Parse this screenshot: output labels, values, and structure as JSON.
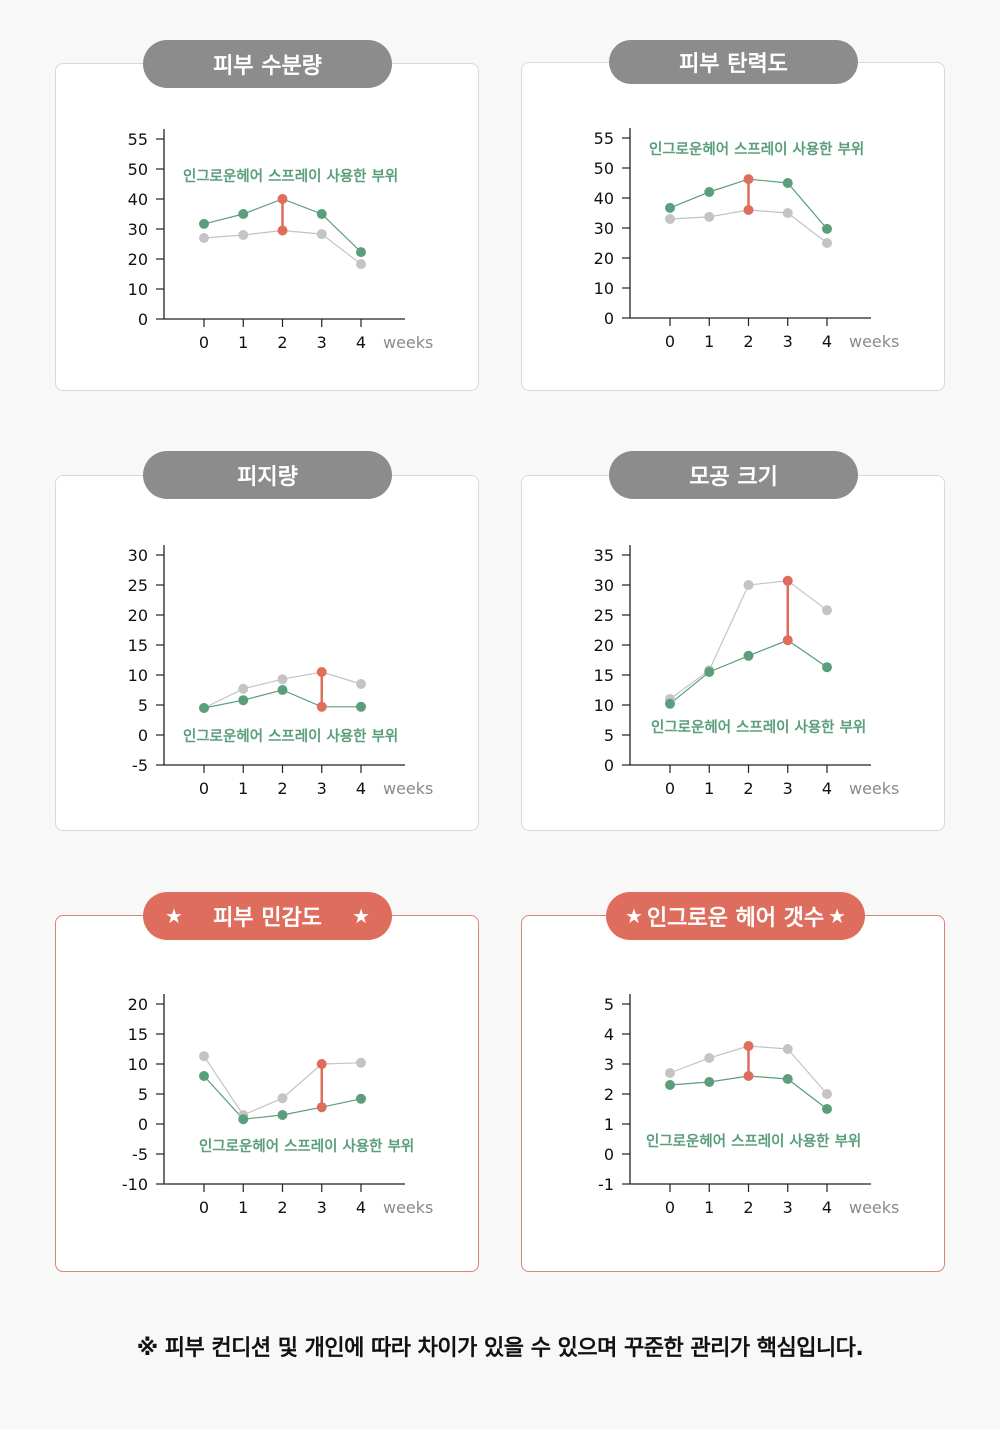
{
  "colors": {
    "treated": "#5a9e7c",
    "untreated": "#c4c4c4",
    "highlight": "#df6d5d",
    "title_pill": "#8c8c8c"
  },
  "footer": "※ 피부 컨디션 및 개인에 따라 차이가 있을 수 있으며 꾸준한 관리가 핵심입니다.",
  "chart_data": [
    {
      "type": "line",
      "title": "피부 수분량",
      "starred": false,
      "xlabel": "weeks",
      "x": [
        0,
        1,
        2,
        3,
        4
      ],
      "y_ticks": [
        55,
        50,
        40,
        30,
        20,
        10,
        0
      ],
      "annotation": "인그로운헤어 스프레이 사용한 부위",
      "series": [
        {
          "role": "treated",
          "values": [
            31.7,
            35,
            40,
            35,
            22.3
          ]
        },
        {
          "role": "untreated",
          "values": [
            27,
            28,
            29.5,
            28.3,
            18.3
          ]
        }
      ],
      "highlight_index": 2
    },
    {
      "type": "line",
      "title": "피부 탄력도",
      "starred": false,
      "xlabel": "weeks",
      "x": [
        0,
        1,
        2,
        3,
        4
      ],
      "y_ticks": [
        55,
        50,
        40,
        30,
        20,
        10,
        0
      ],
      "annotation": "인그로운헤어 스프레이 사용한 부위",
      "series": [
        {
          "role": "treated",
          "values": [
            36.7,
            42,
            46.3,
            45,
            29.7
          ]
        },
        {
          "role": "untreated",
          "values": [
            33,
            33.7,
            36,
            35,
            25
          ]
        }
      ],
      "highlight_index": 2
    },
    {
      "type": "line",
      "title": "피지량",
      "starred": false,
      "xlabel": "weeks",
      "x": [
        0,
        1,
        2,
        3,
        4
      ],
      "y_ticks": [
        30,
        25,
        20,
        15,
        10,
        5,
        0,
        -5
      ],
      "annotation": "인그로운헤어 스프레이 사용한 부위",
      "series": [
        {
          "role": "treated",
          "values": [
            4.5,
            5.8,
            7.5,
            4.7,
            4.7
          ]
        },
        {
          "role": "untreated",
          "values": [
            4.5,
            7.7,
            9.3,
            10.5,
            8.5
          ]
        }
      ],
      "highlight_index": 3
    },
    {
      "type": "line",
      "title": "모공 크기",
      "starred": false,
      "xlabel": "weeks",
      "x": [
        0,
        1,
        2,
        3,
        4
      ],
      "y_ticks": [
        35,
        30,
        25,
        20,
        15,
        10,
        5,
        0
      ],
      "annotation": "인그로운헤어 스프레이 사용한 부위",
      "series": [
        {
          "role": "treated",
          "values": [
            10.2,
            15.5,
            18.2,
            20.8,
            16.3
          ]
        },
        {
          "role": "untreated",
          "values": [
            11,
            15.8,
            30,
            30.7,
            25.8
          ]
        }
      ],
      "highlight_index": 3
    },
    {
      "type": "line",
      "title": "피부 민감도",
      "starred": true,
      "xlabel": "weeks",
      "x": [
        0,
        1,
        2,
        3,
        4
      ],
      "y_ticks": [
        20,
        15,
        10,
        5,
        0,
        -5,
        -10
      ],
      "annotation": "인그로운헤어 스프레이 사용한 부위",
      "series": [
        {
          "role": "treated",
          "values": [
            8,
            0.8,
            1.5,
            2.8,
            4.2
          ]
        },
        {
          "role": "untreated",
          "values": [
            11.3,
            1.5,
            4.3,
            10,
            10.2
          ]
        }
      ],
      "highlight_index": 3
    },
    {
      "type": "line",
      "title": "인그로운 헤어 갯수",
      "starred": true,
      "xlabel": "weeks",
      "x": [
        0,
        1,
        2,
        3,
        4
      ],
      "y_ticks": [
        5,
        4,
        3,
        2,
        1,
        0,
        -1
      ],
      "annotation": "인그로운헤어 스프레이 사용한 부위",
      "series": [
        {
          "role": "treated",
          "values": [
            2.3,
            2.4,
            2.6,
            2.5,
            1.5
          ]
        },
        {
          "role": "untreated",
          "values": [
            2.7,
            3.2,
            3.6,
            3.5,
            2
          ]
        }
      ],
      "highlight_index": 2
    }
  ]
}
